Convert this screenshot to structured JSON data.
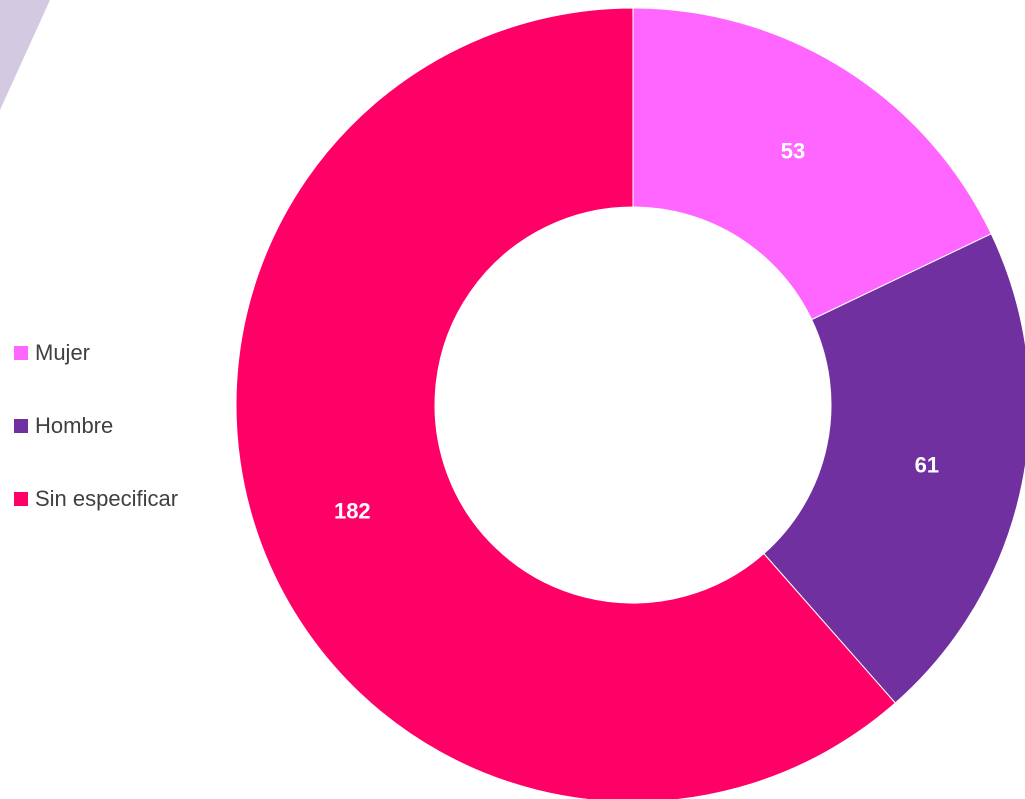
{
  "chart_data": {
    "type": "pie",
    "variant": "donut",
    "categories": [
      "Mujer",
      "Hombre",
      "Sin especificar"
    ],
    "values": [
      53,
      61,
      182
    ],
    "colors": [
      "#FF66FF",
      "#7030A0",
      "#FF0066"
    ],
    "data_labels": [
      "53",
      "61",
      "182"
    ],
    "title": "",
    "legend_position": "left"
  }
}
